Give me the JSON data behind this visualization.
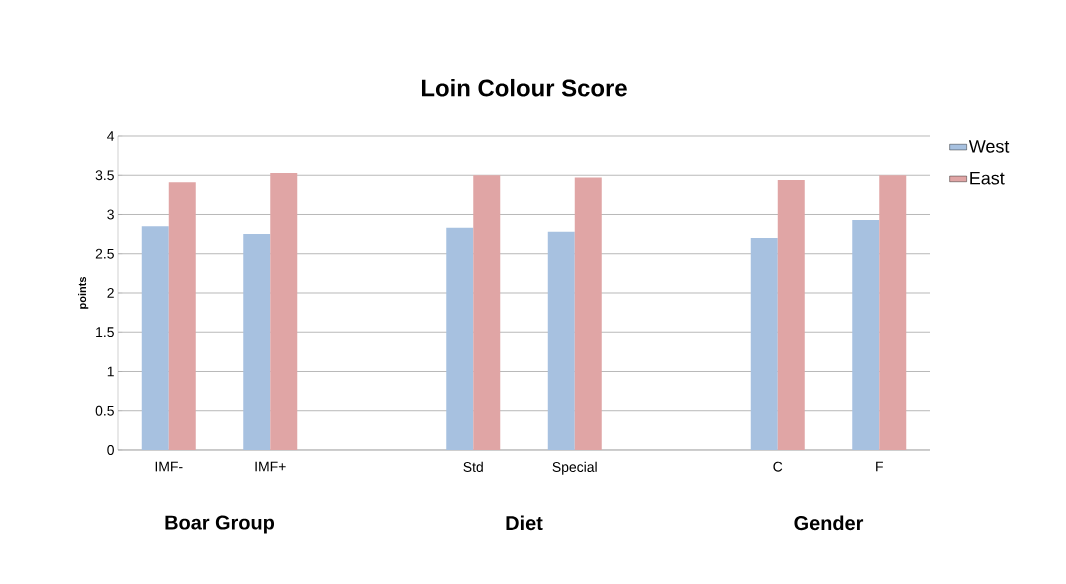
{
  "chart_data": {
    "type": "bar",
    "title": "Loin Colour Score",
    "ylabel": "points",
    "categories": [
      "IMF-",
      "IMF+",
      null,
      "Std",
      "Special",
      null,
      "C",
      "F"
    ],
    "series": [
      {
        "name": "West",
        "color": "#a7c1e0",
        "values": [
          2.85,
          2.75,
          null,
          2.83,
          2.78,
          null,
          2.7,
          2.93
        ]
      },
      {
        "name": "East",
        "color": "#e0a5a5",
        "values": [
          3.41,
          3.53,
          null,
          3.5,
          3.47,
          null,
          3.44,
          3.5
        ]
      }
    ],
    "annotations": [
      "Boar Group",
      "Diet",
      "Gender"
    ],
    "ylim": [
      0,
      4
    ],
    "yticks": [
      0,
      0.5,
      1,
      1.5,
      2,
      2.5,
      3,
      3.5,
      4
    ],
    "grid": "y",
    "legend": "top right"
  }
}
